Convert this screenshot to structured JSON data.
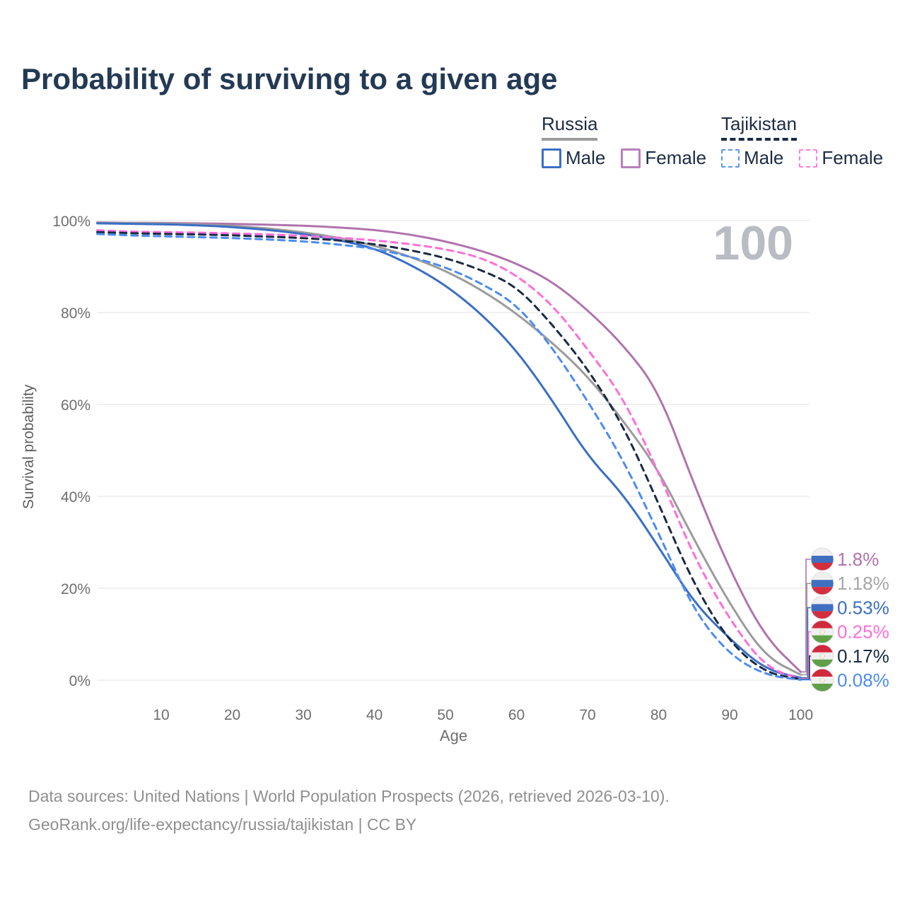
{
  "title": "Probability of surviving to a given age",
  "watermark": "100",
  "legend": {
    "groups": [
      {
        "label": "Russia",
        "underline_style": "solid",
        "underline_color": "#9b9b9b",
        "items": [
          {
            "label": "Male",
            "color": "#3a6fc4",
            "dash": false
          },
          {
            "label": "Female",
            "color": "#b980b9",
            "dash": false
          }
        ]
      },
      {
        "label": "Tajikistan",
        "underline_style": "dashed",
        "underline_color": "#1b2a44",
        "items": [
          {
            "label": "Male",
            "color": "#5b96f2",
            "dash": true
          },
          {
            "label": "Female",
            "color": "#ff7ede",
            "dash": true
          }
        ]
      }
    ]
  },
  "chart_data": {
    "type": "line",
    "title": "Probability of surviving to a given age",
    "xlabel": "Age",
    "ylabel": "Survival probability",
    "xlim": [
      0,
      100
    ],
    "ylim": [
      0,
      100
    ],
    "x_ticks": [
      10,
      20,
      30,
      40,
      50,
      60,
      70,
      80,
      90,
      100
    ],
    "y_ticks": [
      0,
      20,
      40,
      60,
      80,
      100
    ],
    "y_tick_suffix": "%",
    "grid": "horizontal",
    "legend_position": "top-right",
    "x": [
      1,
      5,
      10,
      15,
      20,
      25,
      30,
      35,
      40,
      45,
      50,
      55,
      60,
      65,
      70,
      75,
      80,
      85,
      90,
      95,
      100
    ],
    "series": [
      {
        "name": "Russia Female",
        "country": "Russia",
        "sex": "Female",
        "color": "#b073ad",
        "line_style": "solid",
        "values": [
          99.6,
          99.5,
          99.5,
          99.4,
          99.3,
          99.1,
          98.9,
          98.5,
          98.0,
          97.0,
          95.5,
          93.5,
          90.7,
          86.8,
          80.6,
          73.0,
          63.0,
          42.5,
          24.0,
          9.3,
          1.8
        ],
        "end_label": "1.8%",
        "end_label_color": "#b173ad",
        "flag": "russia"
      },
      {
        "name": "Russia Total",
        "country": "Russia",
        "sex": "Both",
        "color": "#9b9b9b",
        "line_style": "solid",
        "values": [
          99.5,
          99.5,
          99.4,
          99.2,
          98.9,
          98.3,
          97.5,
          96.3,
          94.6,
          92.2,
          89.1,
          85.0,
          79.8,
          73.5,
          66.2,
          56.5,
          45.7,
          30.5,
          16.6,
          5.1,
          1.18
        ],
        "end_label": "1.18%",
        "end_label_color": "#a6a6a6",
        "flag": "russia"
      },
      {
        "name": "Russia Male",
        "country": "Russia",
        "sex": "Male",
        "color": "#3a6fc4",
        "line_style": "solid",
        "values": [
          99.4,
          99.3,
          99.2,
          99.0,
          98.6,
          98.0,
          97.1,
          95.8,
          94.0,
          90.5,
          86.0,
          79.8,
          71.8,
          61.0,
          48.8,
          40.5,
          29.0,
          16.8,
          9.0,
          2.3,
          0.53
        ],
        "end_label": "0.53%",
        "end_label_color": "#3a6fc4",
        "flag": "russia"
      },
      {
        "name": "Tajikistan Female",
        "country": "Tajikistan",
        "sex": "Female",
        "color": "#ff6ed8",
        "line_style": "dashed",
        "values": [
          97.9,
          97.6,
          97.5,
          97.4,
          97.2,
          97.0,
          96.7,
          96.3,
          95.7,
          94.9,
          93.8,
          92.0,
          88.2,
          81.8,
          72.1,
          61.5,
          45.3,
          26.7,
          13.2,
          2.8,
          0.25
        ],
        "end_label": "0.25%",
        "end_label_color": "#ff6ed8",
        "flag": "tajikistan"
      },
      {
        "name": "Tajikistan Total",
        "country": "Tajikistan",
        "sex": "Both",
        "color": "#1b2a44",
        "line_style": "dashed",
        "values": [
          97.5,
          97.3,
          97.1,
          97.0,
          96.8,
          96.5,
          96.2,
          95.7,
          94.9,
          93.6,
          91.9,
          89.3,
          85.7,
          77.5,
          67.8,
          55.5,
          38.4,
          20.7,
          8.2,
          1.6,
          0.17
        ],
        "end_label": "0.17%",
        "end_label_color": "#1b2a44",
        "flag": "tajikistan"
      },
      {
        "name": "Tajikistan Male",
        "country": "Tajikistan",
        "sex": "Male",
        "color": "#4d8cf0",
        "line_style": "dashed",
        "values": [
          97.1,
          96.8,
          96.6,
          96.4,
          96.2,
          95.9,
          95.5,
          94.8,
          93.9,
          92.2,
          89.9,
          86.4,
          81.8,
          72.5,
          60.8,
          48.0,
          32.0,
          15.0,
          5.5,
          1.1,
          0.08
        ],
        "end_label": "0.08%",
        "end_label_color": "#4d8cf0",
        "flag": "tajikistan"
      }
    ],
    "annotations": {
      "watermark": "100"
    }
  },
  "flag_colors": {
    "russia": {
      "top": "#f0f0f0",
      "middle": "#3f6fc1",
      "bottom": "#d32f3f"
    },
    "tajikistan": {
      "top": "#d0293c",
      "middle": "#f0f0f0",
      "bottom": "#5fa048",
      "emblem": "#dcc06a"
    }
  },
  "footer": {
    "line1": "Data sources: United Nations | World Population Prospects (2026, retrieved 2026-03-10).",
    "line2": "GeoRank.org/life-expectancy/russia/tajikistan | CC BY"
  }
}
